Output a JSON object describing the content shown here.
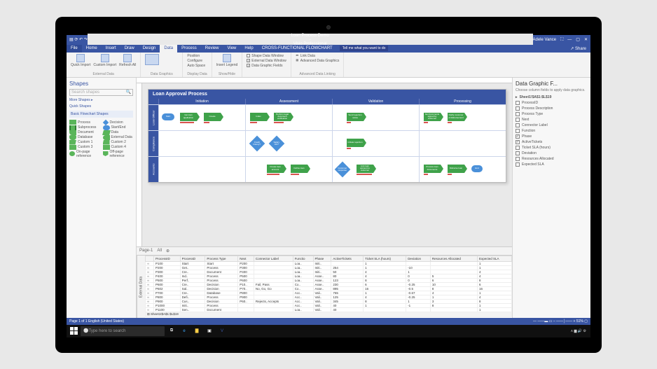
{
  "titlebar": {
    "doc": "Loan Process Demo",
    "app": "Visio Professional",
    "user": "Adele Vance"
  },
  "menu": {
    "tabs": [
      "File",
      "Home",
      "Insert",
      "Draw",
      "Design",
      "Data",
      "Process",
      "Review",
      "View",
      "Help",
      "CROSS-FUNCTIONAL FLOWCHART"
    ],
    "active": "Data",
    "tell": "Tell me what you want to do",
    "share": "Share"
  },
  "ribbon": {
    "g1": {
      "b1": "Quick Import",
      "b2": "Custom Import",
      "b3": "Refresh All",
      "label": "External Data"
    },
    "g2": {
      "label": "Data Graphics"
    },
    "g3": {
      "b1": "Position",
      "b2": "Configure",
      "b3": "Auto Space",
      "label": "Display Data"
    },
    "g4": {
      "b1": "Insert Legend",
      "label": "Show/Hide"
    },
    "g5": {
      "c1": "Shape Data Window",
      "c2": "External Data Window",
      "c3": "Data Graphic Fields",
      "label": ""
    },
    "g6": {
      "c1": "Link Data",
      "c2": "Advanced Data Graphics",
      "label": "Advanced Data Linking"
    }
  },
  "shapes": {
    "title": "Shapes",
    "search": "Search shapes",
    "more": "More Shapes",
    "quick": "Quick Shapes",
    "section": "Basic Flowchart Shapes",
    "items": [
      [
        "Process",
        "sw-process",
        "Decision",
        "sw-decision"
      ],
      [
        "Subprocess",
        "sw-sub",
        "Start/End",
        "sw-startend"
      ],
      [
        "Document",
        "sw-doc",
        "Data",
        "sw-data"
      ],
      [
        "Database",
        "sw-db",
        "External Data",
        "sw-ext"
      ],
      [
        "Custom 1",
        "sw-c1",
        "Custom 2",
        "sw-c2"
      ],
      [
        "Custom 3",
        "sw-c3",
        "Custom 4",
        "sw-c4"
      ],
      [
        "On-page reference",
        "sw-on",
        "Off-page reference",
        "sw-off"
      ]
    ]
  },
  "diagram": {
    "title": "Loan Approval Process",
    "cols": [
      "Initiation",
      "Assessment",
      "Validation",
      "Processing"
    ],
    "lanes": [
      "Loan Officer",
      "Compliance",
      "Accounts"
    ]
  },
  "pagetabs": {
    "page": "Page-1",
    "all": "All"
  },
  "externalData": {
    "label": "External Data",
    "sheet": "Sheet1!$A$1:$L$19",
    "columns": [
      "",
      "ProcessID",
      "ProcessD",
      "Process Type",
      "Next",
      "Connector Label",
      "Functio",
      "Phase",
      "ActiveTickets",
      "Ticket SLA (hours)",
      "Deviation",
      "Resources Allocated",
      "Expected SLA"
    ],
    "rows": [
      [
        "∞",
        "P100",
        "Start",
        "Start",
        "P200",
        "",
        "Loa..",
        "Initi..",
        "",
        "1",
        "",
        "",
        "1"
      ],
      [
        "∞",
        "P200",
        "Get..",
        "Process",
        "P300",
        "",
        "Loa..",
        "Initi..",
        "254",
        "1",
        "-10",
        "",
        "1"
      ],
      [
        "∞",
        "P300",
        "Cre..",
        "Document",
        "P400",
        "",
        "Loa..",
        "Initi..",
        "50",
        "4",
        "1",
        "",
        "4"
      ],
      [
        "∞",
        "P400",
        "Ind..",
        "Process",
        "P500",
        "",
        "Loa..",
        "Asse..",
        "80",
        "4",
        "0",
        "5",
        "4"
      ],
      [
        "∞",
        "P500",
        "Perf..",
        "Process",
        "P600",
        "",
        "Loa..",
        "Asse..",
        "123",
        "8",
        "0",
        "6",
        "8"
      ],
      [
        "∞",
        "P600",
        "Cre..",
        "Decision",
        "P10..",
        "Fail, Pass",
        "Co..",
        "Asse..",
        "230",
        "6",
        "-0.25",
        "10",
        "6"
      ],
      [
        "∞",
        "P602",
        "Sal..",
        "Decision",
        "P70..",
        "No, Go, Go",
        "Co..",
        "Asse..",
        "895",
        "16",
        "-0.5",
        "8",
        "16"
      ],
      [
        "∞",
        "P700",
        "Cre..",
        "Database",
        "P800",
        "",
        "Acc..",
        "Vali..",
        "765",
        "1",
        "-0.67",
        "4",
        "1"
      ],
      [
        "∞",
        "P800",
        "Defi..",
        "Process",
        "P900",
        "",
        "Acc..",
        "Vali..",
        "125",
        "4",
        "-0.25",
        "1",
        "4"
      ],
      [
        "∞",
        "P900",
        "Cus..",
        "Decision",
        "P60..",
        "Rejects, Accepts",
        "Acc..",
        "Vali..",
        "345",
        "8",
        "1",
        "3",
        "8"
      ],
      [
        "∞",
        "P1000",
        "Initi..",
        "Process",
        "",
        "",
        "Acc..",
        "Vali..",
        "40",
        "1",
        "-1",
        "8",
        "1"
      ],
      [
        "∞",
        "P1100",
        "Sen..",
        "Document",
        "",
        "",
        "Loa..",
        "Vali..",
        "40",
        "",
        "",
        "",
        "1"
      ]
    ]
  },
  "rightpane": {
    "title": "Data Graphic F...",
    "note": "Choose column fields to apply data graphics.",
    "sheet": "Sheet1!$A$1:$L$19",
    "fields": [
      {
        "l": "ProcessID",
        "c": false
      },
      {
        "l": "Process Description",
        "c": false
      },
      {
        "l": "Process Type",
        "c": false
      },
      {
        "l": "Next",
        "c": false
      },
      {
        "l": "Connector Label",
        "c": false
      },
      {
        "l": "Function",
        "c": false
      },
      {
        "l": "Phase",
        "c": true
      },
      {
        "l": "ActiveTickets",
        "c": true
      },
      {
        "l": "Ticket SLA (hours)",
        "c": false
      },
      {
        "l": "Deviation",
        "c": false
      },
      {
        "l": "Resources Allocated",
        "c": false
      },
      {
        "l": "Expected SLA",
        "c": false
      }
    ]
  },
  "statusbar": {
    "left": "Page 1 of 1    English (United States)",
    "right": "— ——▬ ▭  – ——│—— +   51%  ▢"
  },
  "taskbar": {
    "search": "Type here to search"
  },
  "colors": {
    "accent": "#3955a3",
    "green": "#3fa24a",
    "blue": "#4a90d9",
    "red": "#d9534f"
  }
}
